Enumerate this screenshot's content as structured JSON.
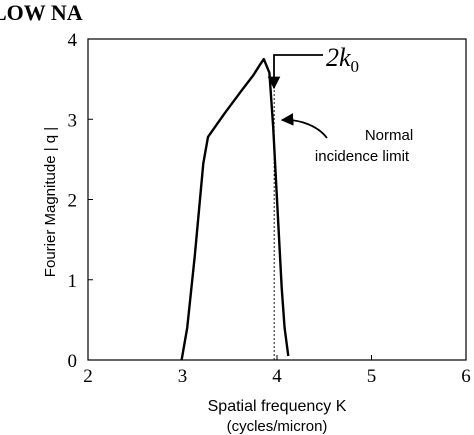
{
  "chart_data": {
    "type": "line",
    "title": "LOW NA",
    "xlabel_line1": "Spatial frequency K",
    "xlabel_line2": "(cycles/micron)",
    "ylabel": "Fourier Magnitude | q |",
    "xlim": [
      2,
      6
    ],
    "ylim": [
      0,
      4
    ],
    "x_ticks": [
      "2",
      "3",
      "4",
      "5",
      "6"
    ],
    "y_ticks": [
      "0",
      "1",
      "2",
      "3",
      "4"
    ],
    "grid": false,
    "series": [
      {
        "x": [
          2.99,
          3.05,
          3.13,
          3.22,
          3.27,
          3.45,
          3.62,
          3.75,
          3.82,
          3.86,
          3.92,
          3.96,
          4.0,
          4.05,
          4.08,
          4.12
        ],
        "y": [
          0.0,
          0.4,
          1.3,
          2.45,
          2.78,
          3.08,
          3.35,
          3.55,
          3.68,
          3.75,
          3.58,
          2.9,
          2.0,
          0.9,
          0.4,
          0.05
        ]
      }
    ],
    "reference_line": {
      "x": 3.97,
      "style": "dashed"
    },
    "annotations": [
      {
        "id": "two_k0",
        "text_main": "2k",
        "text_sub": "0"
      },
      {
        "id": "normal_incidence",
        "line1": "Normal",
        "line2": "incidence limit"
      }
    ]
  },
  "colors": {
    "line": "#000000",
    "background": "#ffffff"
  }
}
